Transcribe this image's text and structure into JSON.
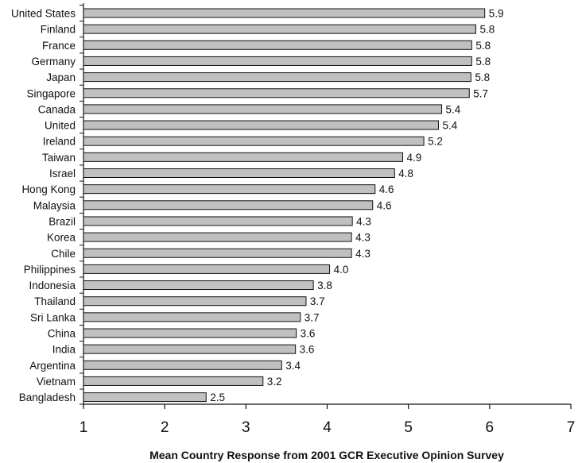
{
  "chart_data": {
    "type": "bar",
    "orientation": "horizontal",
    "categories": [
      "United States",
      "Finland",
      "France",
      "Germany",
      "Japan",
      "Singapore",
      "Canada",
      "United",
      "Ireland",
      "Taiwan",
      "Israel",
      "Hong Kong",
      "Malaysia",
      "Brazil",
      "Korea",
      "Chile",
      "Philippines",
      "Indonesia",
      "Thailand",
      "Sri Lanka",
      "China",
      "India",
      "Argentina",
      "Vietnam",
      "Bangladesh"
    ],
    "values": [
      5.94,
      5.83,
      5.78,
      5.78,
      5.77,
      5.75,
      5.41,
      5.37,
      5.19,
      4.93,
      4.83,
      4.59,
      4.56,
      4.31,
      4.3,
      4.3,
      4.03,
      3.83,
      3.74,
      3.67,
      3.62,
      3.61,
      3.44,
      3.21,
      2.51
    ],
    "value_labels": [
      "5.9",
      "5.8",
      "5.8",
      "5.8",
      "5.8",
      "5.7",
      "5.4",
      "5.4",
      "5.2",
      "4.9",
      "4.8",
      "4.6",
      "4.6",
      "4.3",
      "4.3",
      "4.3",
      "4.0",
      "3.8",
      "3.7",
      "3.7",
      "3.6",
      "3.6",
      "3.4",
      "3.2",
      "2.5"
    ],
    "xlim": [
      1,
      7
    ],
    "xticks": [
      "1",
      "2",
      "3",
      "4",
      "5",
      "6",
      "7"
    ],
    "xlabel": "Mean Country Response from 2001 GCR Executive Opinion Survey",
    "title": "",
    "ylabel": "",
    "grid": false,
    "legend": "none",
    "bar_color": "#c0c0c0",
    "bar_edge_color": "#111111"
  }
}
